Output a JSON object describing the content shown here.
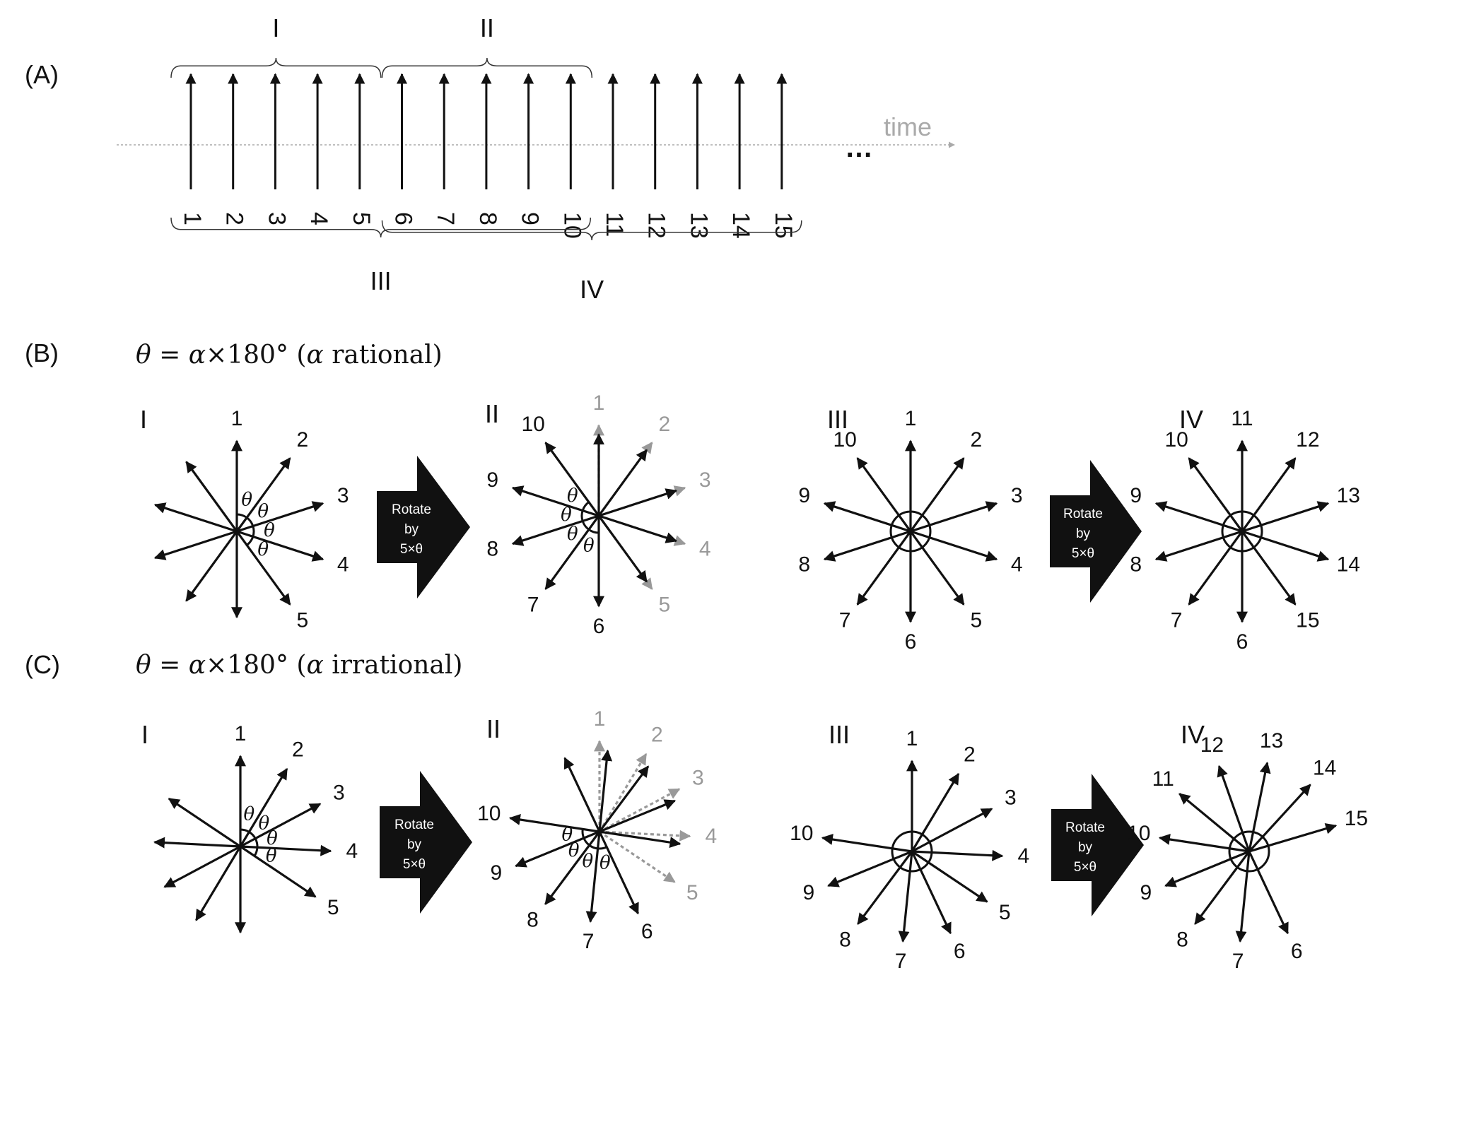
{
  "panels": {
    "A": "(A)",
    "B": "(B)",
    "C": "(C)"
  },
  "timeline": {
    "time_label": "time",
    "ellipsis": "…",
    "ticks": [
      "1",
      "2",
      "3",
      "4",
      "5",
      "6",
      "7",
      "8",
      "9",
      "10",
      "11",
      "12",
      "13",
      "14",
      "15"
    ],
    "braces_top": [
      {
        "label": "I",
        "from_tick": 1,
        "to_tick": 5
      },
      {
        "label": "II",
        "from_tick": 6,
        "to_tick": 10
      }
    ],
    "braces_bottom": [
      {
        "label": "III",
        "from_tick": 1,
        "to_tick": 10
      },
      {
        "label": "IV",
        "from_tick": 6,
        "to_tick": 15
      }
    ]
  },
  "formulas": {
    "B": {
      "lhs": "θ",
      "eq": " = ",
      "alpha": "α",
      "rest": "×180° (",
      "alpha2": "α",
      "tail": " rational)"
    },
    "C": {
      "lhs": "θ",
      "eq": " = ",
      "alpha": "α",
      "rest": "×180° (",
      "alpha2": "α",
      "tail": " irrational)"
    }
  },
  "theta_symbol": "θ",
  "rotate_box": {
    "line1": "Rotate",
    "line2": "by",
    "line3": "5×θ"
  },
  "diagrams": [
    {
      "id": "B-I",
      "roman": "I",
      "alpha": 0.2,
      "mode": "single",
      "angle_marks": true,
      "labels": [
        "1",
        "2",
        "3",
        "4",
        "5"
      ]
    },
    {
      "id": "B-II",
      "roman": "II",
      "alpha": 0.2,
      "mode": "rotated",
      "angle_marks": true,
      "labels": [
        "6",
        "7",
        "8",
        "9",
        "10"
      ],
      "gray_labels": [
        "1",
        "2",
        "3",
        "4",
        "5"
      ]
    },
    {
      "id": "B-III",
      "roman": "III",
      "alpha": 0.2,
      "mode": "union",
      "labels": [
        "1",
        "2",
        "3",
        "4",
        "5",
        "6",
        "7",
        "8",
        "9",
        "10"
      ]
    },
    {
      "id": "B-IV",
      "roman": "IV",
      "alpha": 0.2,
      "mode": "union",
      "labels": [
        "6",
        "7",
        "8",
        "9",
        "10",
        "11",
        "12",
        "13",
        "14",
        "15"
      ]
    },
    {
      "id": "C-I",
      "roman": "I",
      "alpha": 0.172,
      "mode": "single",
      "angle_marks": true,
      "labels": [
        "1",
        "2",
        "3",
        "4",
        "5"
      ]
    },
    {
      "id": "C-II",
      "roman": "II",
      "alpha": 0.172,
      "mode": "rotated",
      "angle_marks": true,
      "labels": [
        "6",
        "7",
        "8",
        "9",
        "10"
      ],
      "gray_labels": [
        "1",
        "2",
        "3",
        "4",
        "5"
      ]
    },
    {
      "id": "C-III",
      "roman": "III",
      "alpha": 0.172,
      "mode": "union",
      "labels": [
        "1",
        "2",
        "3",
        "4",
        "5",
        "6",
        "7",
        "8",
        "9",
        "10"
      ]
    },
    {
      "id": "C-IV",
      "roman": "IV",
      "alpha": 0.172,
      "mode": "union",
      "labels": [
        "6",
        "7",
        "8",
        "9",
        "10",
        "11",
        "12",
        "13",
        "14",
        "15"
      ]
    }
  ]
}
